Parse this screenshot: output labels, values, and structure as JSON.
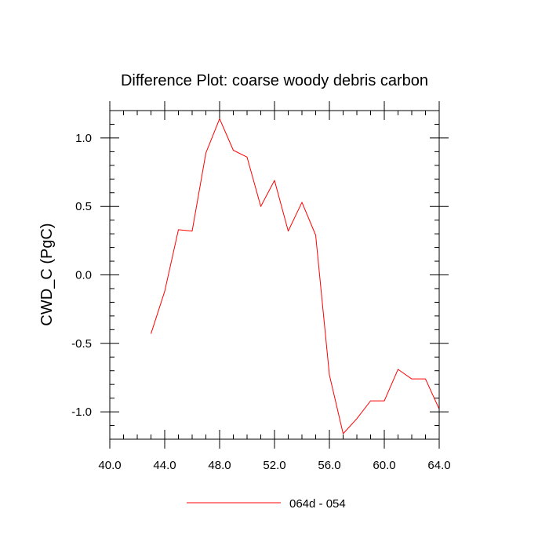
{
  "chart_data": {
    "type": "line",
    "title": "Difference Plot: coarse woody debris carbon",
    "xlabel": "",
    "ylabel": "CWD_C  (PgC)",
    "xlim": [
      40,
      64
    ],
    "ylim": [
      -1.2,
      1.2
    ],
    "x_major_ticks": [
      40,
      44,
      48,
      52,
      56,
      60,
      64
    ],
    "x_tick_labels": [
      "40.0",
      "44.0",
      "48.0",
      "52.0",
      "56.0",
      "60.0",
      "64.0"
    ],
    "y_major_ticks": [
      -1.0,
      -0.5,
      0.0,
      0.5,
      1.0
    ],
    "y_tick_labels": [
      "-1.0",
      "-0.5",
      "0.0",
      "0.5",
      "1.0"
    ],
    "x_minor_step": 1,
    "y_minor_step": 0.1,
    "grid": false,
    "legend_position": "bottom-center",
    "series": [
      {
        "name": "064d - 054",
        "color": "#ff0000",
        "x": [
          43,
          44,
          45,
          46,
          47,
          48,
          49,
          50,
          51,
          52,
          53,
          54,
          55,
          56,
          57,
          58,
          59,
          60,
          61,
          62,
          63,
          64
        ],
        "y": [
          -0.43,
          -0.12,
          0.33,
          0.32,
          0.89,
          1.14,
          0.91,
          0.86,
          0.5,
          0.69,
          0.32,
          0.53,
          0.29,
          -0.73,
          -1.16,
          -1.05,
          -0.92,
          -0.92,
          -0.69,
          -0.76,
          -0.76,
          -0.98
        ]
      }
    ]
  }
}
